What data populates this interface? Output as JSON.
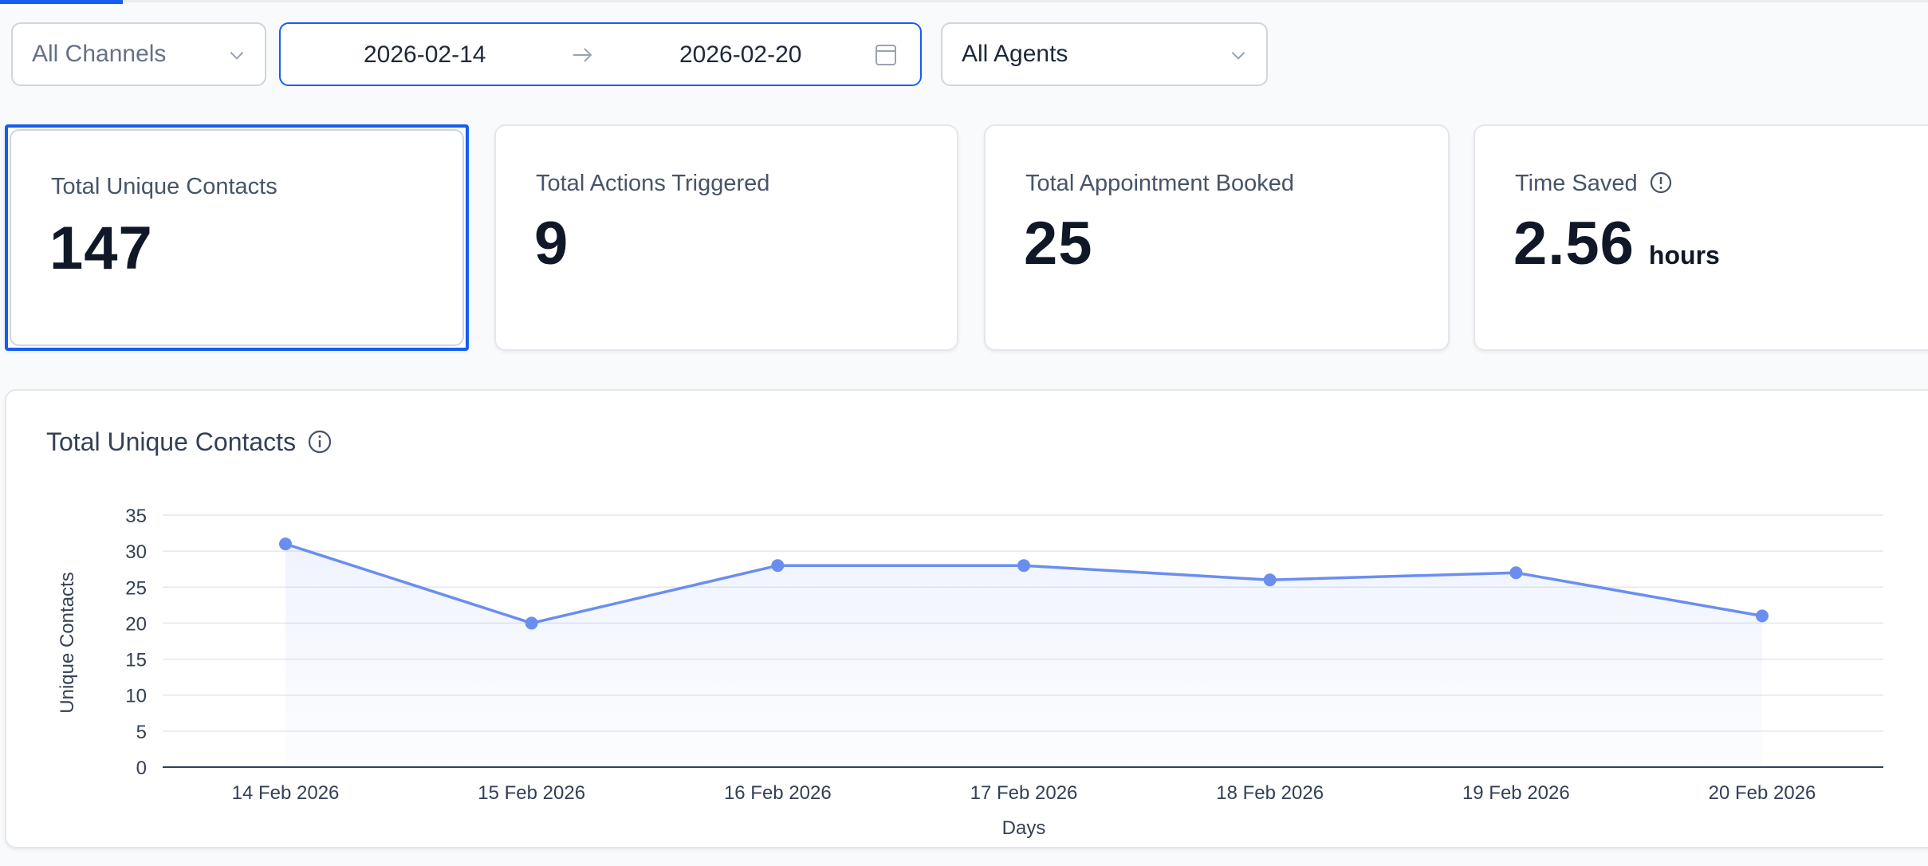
{
  "filters": {
    "channel": "All Channels",
    "date_start": "2026-02-14",
    "date_end": "2026-02-20",
    "agent": "All Agents"
  },
  "cards": [
    {
      "label": "Total Unique Contacts",
      "value": "147"
    },
    {
      "label": "Total Actions Triggered",
      "value": "9"
    },
    {
      "label": "Total Appointment Booked",
      "value": "25"
    },
    {
      "label": "Time Saved",
      "value": "2.56",
      "unit": "hours"
    }
  ],
  "chart_section": {
    "title": "Total Unique Contacts",
    "chart_data": {
      "type": "area",
      "categories": [
        "14 Feb 2026",
        "15 Feb 2026",
        "16 Feb 2026",
        "17 Feb 2026",
        "18 Feb 2026",
        "19 Feb 2026",
        "20 Feb 2026"
      ],
      "values": [
        31,
        20,
        28,
        28,
        26,
        27,
        21
      ],
      "xlabel": "Days",
      "ylabel": "Unique Contacts",
      "ylim": [
        0,
        35
      ],
      "yticks": [
        0,
        5,
        10,
        15,
        20,
        25,
        30,
        35
      ],
      "grid": true,
      "color": "#6a8ef0"
    }
  },
  "colors": {
    "accent": "#155eef",
    "line": "#6a8ef0"
  }
}
